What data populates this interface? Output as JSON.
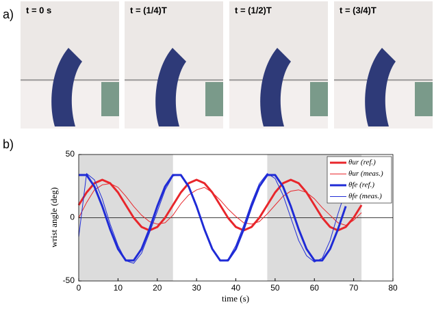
{
  "panel_a": {
    "label": "a)",
    "photos": [
      {
        "caption": "t = 0 s"
      },
      {
        "caption": "t = (1/4)T"
      },
      {
        "caption": "t = (1/2)T"
      },
      {
        "caption": "t = (3/4)T"
      }
    ]
  },
  "chart_data": {
    "type": "line",
    "panel_label": "b)",
    "xlabel": "time (s)",
    "ylabel": "wrist angle (deg)",
    "xlim": [
      0,
      80
    ],
    "xticks": [
      0,
      10,
      20,
      30,
      40,
      50,
      60,
      70,
      80
    ],
    "ylim": [
      -50,
      50
    ],
    "yticks": [
      -50,
      0,
      50
    ],
    "zero_line": true,
    "shaded_x": [
      [
        0,
        24
      ],
      [
        48,
        72
      ]
    ],
    "shade_color": "#dcdcdc",
    "legend": "upper right",
    "x": [
      0,
      2,
      4,
      6,
      8,
      10,
      12,
      14,
      16,
      18,
      20,
      22,
      24,
      26,
      28,
      30,
      32,
      34,
      36,
      38,
      40,
      42,
      44,
      46,
      48,
      50,
      52,
      54,
      56,
      58,
      60,
      62,
      64,
      66,
      68,
      70,
      72
    ],
    "series": [
      {
        "name": "θur (ref.)",
        "color": "#e8262b",
        "width": 3,
        "values": [
          10,
          20,
          27.3,
          30,
          27.3,
          20,
          10,
          0,
          -7.3,
          -10,
          -7.3,
          0,
          10,
          20,
          27.3,
          30,
          27.3,
          20,
          10,
          0,
          -7.3,
          -10,
          -7.3,
          0,
          10,
          20,
          27.3,
          30,
          27.3,
          20,
          10,
          0,
          -7.3,
          -10,
          -7.3,
          0,
          10
        ]
      },
      {
        "name": "θur (meas.)",
        "color": "#e8262b",
        "width": 1,
        "values": [
          0,
          12,
          22,
          26,
          27,
          24,
          17,
          9,
          2,
          -3,
          -5,
          -4,
          2,
          11,
          18,
          22,
          24,
          20,
          14,
          7,
          1,
          -4,
          -5,
          -3,
          3,
          10,
          17,
          21,
          22,
          20,
          15,
          8,
          2,
          -4,
          -6,
          -2,
          4
        ]
      },
      {
        "name": "θfe (ref.)",
        "color": "#1f2bd6",
        "width": 3,
        "values": [
          33.8,
          33.8,
          24.7,
          9.1,
          -9.1,
          -24.7,
          -33.8,
          -33.8,
          -24.7,
          -9.1,
          9.1,
          24.7,
          33.8,
          33.8,
          24.7,
          9.1,
          -9.1,
          -24.7,
          -33.8,
          -33.8,
          -24.7,
          -9.1,
          9.1,
          24.7,
          33.8,
          33.8,
          24.7,
          9.1,
          -9.1,
          -24.7,
          -33.8,
          -33.8,
          -24.7,
          -9.1,
          9.1,
          null,
          null
        ]
      },
      {
        "name": "θfe (meas.)",
        "color": "#1f2bd6",
        "width": 1,
        "values": [
          -15,
          35,
          30,
          15,
          -5,
          -22,
          -34,
          -36,
          -28,
          -12,
          5,
          22,
          33,
          34,
          25,
          10,
          -8,
          -25,
          -34,
          -33,
          -22,
          -6,
          12,
          27,
          35,
          31,
          18,
          0,
          -18,
          -30,
          -35,
          -32,
          -18,
          3,
          22,
          null,
          null
        ]
      }
    ]
  }
}
